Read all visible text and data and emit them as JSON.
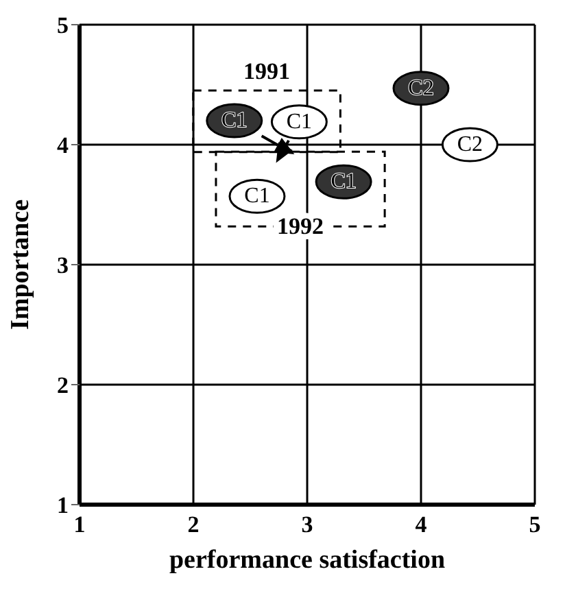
{
  "chart_data": {
    "type": "scatter",
    "xlabel": "performance satisfaction",
    "ylabel": "Importance",
    "xlim": [
      1,
      5
    ],
    "ylim": [
      1,
      5
    ],
    "xticks": [
      1,
      2,
      3,
      4,
      5
    ],
    "yticks": [
      1,
      2,
      3,
      4,
      5
    ],
    "grid": true,
    "series": [
      {
        "color": "#333333",
        "x": [
          2.36,
          3.32,
          4.0
        ],
        "values": [
          4.2,
          3.69,
          4.47
        ]
      },
      {
        "color": "#ffffff",
        "x": [
          2.93,
          2.56,
          4.43
        ],
        "values": [
          4.19,
          3.57,
          4.0
        ]
      }
    ],
    "annotations": [
      {
        "text": "C1",
        "x": 2.36,
        "y": 4.2
      },
      {
        "text": "C1",
        "x": 3.32,
        "y": 3.69
      },
      {
        "text": "C2",
        "x": 4.0,
        "y": 4.47
      },
      {
        "text": "C1",
        "x": 2.93,
        "y": 4.19
      },
      {
        "text": "C1",
        "x": 2.56,
        "y": 3.57
      },
      {
        "text": "C2",
        "x": 4.43,
        "y": 4.0
      },
      "1991",
      "1992"
    ]
  }
}
